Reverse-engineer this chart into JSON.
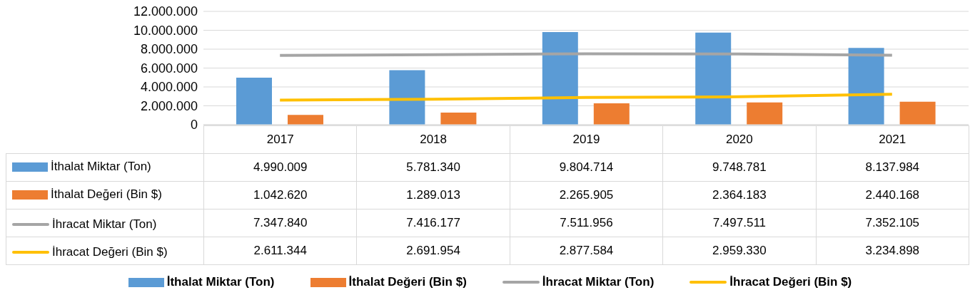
{
  "chart_data": {
    "type": "bar",
    "categories": [
      "2017",
      "2018",
      "2019",
      "2020",
      "2021"
    ],
    "series": [
      {
        "name": "İthalat Miktar (Ton)",
        "color": "#5b9bd5",
        "values": [
          4990009,
          5781340,
          9804714,
          9748781,
          8137984
        ],
        "value_labels": [
          "4.990.009",
          "5.781.340",
          "9.804.714",
          "9.748.781",
          "8.137.984"
        ]
      },
      {
        "name": "İthalat Değeri (Bin $)",
        "color": "#ed7d31",
        "values": [
          1042620,
          1289013,
          2265905,
          2364183,
          2440168
        ],
        "value_labels": [
          "1.042.620",
          "1.289.013",
          "2.265.905",
          "2.364.183",
          "2.440.168"
        ]
      },
      {
        "name": "İhracat Miktar (Ton)",
        "type": "line",
        "color": "#a5a5a5",
        "values": [
          7347840,
          7416177,
          7511956,
          7497511,
          7352105
        ],
        "value_labels": [
          "7.347.840",
          "7.416.177",
          "7.511.956",
          "7.497.511",
          "7.352.105"
        ]
      },
      {
        "name": "İhracat Değeri (Bin $)",
        "type": "line",
        "color": "#ffc000",
        "values": [
          2611344,
          2691954,
          2877584,
          2959330,
          3234898
        ],
        "value_labels": [
          "2.611.344",
          "2.691.954",
          "2.877.584",
          "2.959.330",
          "3.234.898"
        ]
      }
    ],
    "ylim": [
      0,
      12000000
    ],
    "yticks": [
      {
        "value": 0,
        "label": "0"
      },
      {
        "value": 2000000,
        "label": "2.000.000"
      },
      {
        "value": 4000000,
        "label": "4.000.000"
      },
      {
        "value": 6000000,
        "label": "6.000.000"
      },
      {
        "value": 8000000,
        "label": "8.000.000"
      },
      {
        "value": 10000000,
        "label": "10.000.000"
      },
      {
        "value": 12000000,
        "label": "12.000.000"
      }
    ],
    "grid": "y",
    "legend": "bottom",
    "marker": "none"
  }
}
